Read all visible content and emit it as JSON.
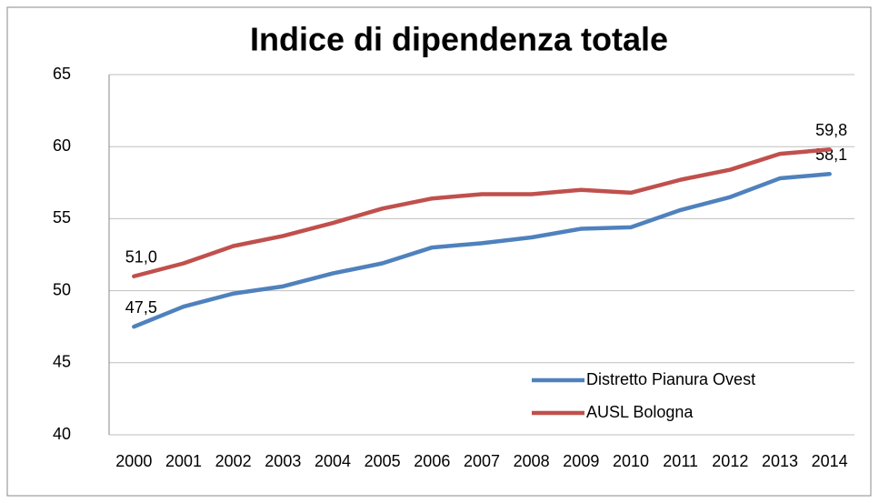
{
  "chart_data": {
    "type": "line",
    "title": "Indice di dipendenza totale",
    "categories": [
      "2000",
      "2001",
      "2002",
      "2003",
      "2004",
      "2005",
      "2006",
      "2007",
      "2008",
      "2009",
      "2010",
      "2011",
      "2012",
      "2013",
      "2014"
    ],
    "series": [
      {
        "name": "Distretto Pianura Ovest",
        "color": "#4f81bd",
        "values": [
          47.5,
          48.9,
          49.8,
          50.3,
          51.2,
          51.9,
          53.0,
          53.3,
          53.7,
          54.3,
          54.4,
          55.6,
          56.5,
          57.8,
          58.1
        ],
        "value_labels": [
          "47,5",
          null,
          null,
          null,
          null,
          null,
          null,
          null,
          null,
          null,
          null,
          null,
          null,
          null,
          "58,1"
        ]
      },
      {
        "name": "AUSL Bologna",
        "color": "#c0504d",
        "values": [
          51.0,
          51.9,
          53.1,
          53.8,
          54.7,
          55.7,
          56.4,
          56.7,
          56.7,
          57.0,
          56.8,
          57.7,
          58.4,
          59.5,
          59.8
        ],
        "value_labels": [
          "51,0",
          null,
          null,
          null,
          null,
          null,
          null,
          null,
          null,
          null,
          null,
          null,
          null,
          null,
          "59,8"
        ]
      }
    ],
    "ylim": [
      40,
      65
    ],
    "yticks": [
      40,
      45,
      50,
      55,
      60,
      65
    ],
    "grid": true,
    "legend": "lower-right"
  }
}
